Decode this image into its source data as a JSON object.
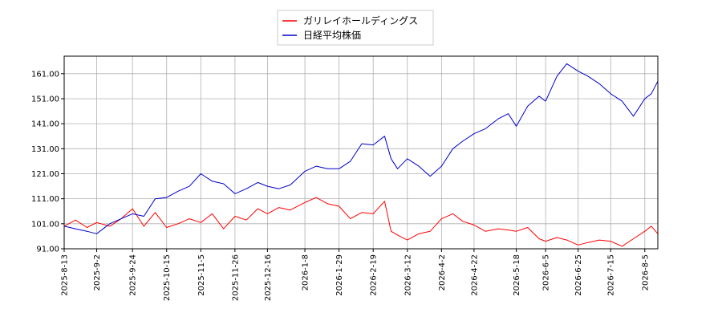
{
  "chart_data": {
    "type": "line",
    "title": "",
    "xlabel": "",
    "ylabel": "",
    "ylim": [
      91,
      168
    ],
    "yticks": [
      "91.00",
      "101.00",
      "111.00",
      "121.00",
      "131.00",
      "141.00",
      "151.00",
      "161.00"
    ],
    "xlim": [
      "2025-08-13",
      "2026-08-13"
    ],
    "xticks": [
      "2025-8-13",
      "2025-9-2",
      "2025-9-24",
      "2025-10-15",
      "2025-11-5",
      "2025-11-26",
      "2025-12-16",
      "2026-1-8",
      "2026-1-29",
      "2026-2-19",
      "2026-3-12",
      "2026-4-2",
      "2026-4-22",
      "2026-5-18",
      "2026-6-5",
      "2026-6-25",
      "2026-7-15",
      "2026-8-5"
    ],
    "grid": true,
    "legend_position": "top-center",
    "series": [
      {
        "name": "ガリレイホールディングス",
        "color": "#ff0000",
        "points": [
          [
            "2025-08-13",
            100.0
          ],
          [
            "2025-08-20",
            102.5
          ],
          [
            "2025-08-27",
            99.5
          ],
          [
            "2025-09-02",
            101.5
          ],
          [
            "2025-09-10",
            100.0
          ],
          [
            "2025-09-17",
            103.0
          ],
          [
            "2025-09-24",
            107.0
          ],
          [
            "2025-10-01",
            100.0
          ],
          [
            "2025-10-08",
            105.5
          ],
          [
            "2025-10-15",
            99.5
          ],
          [
            "2025-10-22",
            101.0
          ],
          [
            "2025-10-29",
            103.0
          ],
          [
            "2025-11-05",
            101.5
          ],
          [
            "2025-11-12",
            105.0
          ],
          [
            "2025-11-19",
            99.0
          ],
          [
            "2025-11-26",
            104.0
          ],
          [
            "2025-12-03",
            102.5
          ],
          [
            "2025-12-10",
            107.0
          ],
          [
            "2025-12-16",
            105.0
          ],
          [
            "2025-12-23",
            107.5
          ],
          [
            "2025-12-30",
            106.5
          ],
          [
            "2026-01-08",
            109.5
          ],
          [
            "2026-01-15",
            111.5
          ],
          [
            "2026-01-22",
            109.0
          ],
          [
            "2026-01-29",
            108.0
          ],
          [
            "2026-02-05",
            103.0
          ],
          [
            "2026-02-12",
            105.5
          ],
          [
            "2026-02-19",
            105.0
          ],
          [
            "2026-02-26",
            110.0
          ],
          [
            "2026-03-02",
            98.0
          ],
          [
            "2026-03-06",
            96.5
          ],
          [
            "2026-03-12",
            94.5
          ],
          [
            "2026-03-19",
            97.0
          ],
          [
            "2026-03-26",
            98.0
          ],
          [
            "2026-04-02",
            103.0
          ],
          [
            "2026-04-09",
            105.0
          ],
          [
            "2026-04-15",
            102.0
          ],
          [
            "2026-04-22",
            100.5
          ],
          [
            "2026-04-29",
            98.0
          ],
          [
            "2026-05-07",
            99.0
          ],
          [
            "2026-05-13",
            98.5
          ],
          [
            "2026-05-18",
            98.0
          ],
          [
            "2026-05-25",
            99.5
          ],
          [
            "2026-06-01",
            95.0
          ],
          [
            "2026-06-05",
            94.0
          ],
          [
            "2026-06-12",
            95.5
          ],
          [
            "2026-06-18",
            94.5
          ],
          [
            "2026-06-25",
            92.5
          ],
          [
            "2026-07-01",
            93.5
          ],
          [
            "2026-07-08",
            94.5
          ],
          [
            "2026-07-15",
            94.0
          ],
          [
            "2026-07-22",
            92.0
          ],
          [
            "2026-07-29",
            95.0
          ],
          [
            "2026-08-05",
            98.0
          ],
          [
            "2026-08-09",
            100.0
          ],
          [
            "2026-08-13",
            97.0
          ]
        ]
      },
      {
        "name": "日経平均株価",
        "color": "#0000cc",
        "points": [
          [
            "2025-08-13",
            100.0
          ],
          [
            "2025-08-20",
            99.0
          ],
          [
            "2025-08-27",
            98.0
          ],
          [
            "2025-09-02",
            97.0
          ],
          [
            "2025-09-10",
            101.0
          ],
          [
            "2025-09-17",
            103.0
          ],
          [
            "2025-09-24",
            105.0
          ],
          [
            "2025-10-01",
            104.0
          ],
          [
            "2025-10-08",
            111.0
          ],
          [
            "2025-10-15",
            111.5
          ],
          [
            "2025-10-22",
            114.0
          ],
          [
            "2025-10-29",
            116.0
          ],
          [
            "2025-11-05",
            121.0
          ],
          [
            "2025-11-12",
            118.0
          ],
          [
            "2025-11-19",
            117.0
          ],
          [
            "2025-11-26",
            113.0
          ],
          [
            "2025-12-03",
            115.0
          ],
          [
            "2025-12-10",
            117.5
          ],
          [
            "2025-12-16",
            116.0
          ],
          [
            "2025-12-23",
            115.0
          ],
          [
            "2025-12-30",
            116.5
          ],
          [
            "2026-01-08",
            122.0
          ],
          [
            "2026-01-15",
            124.0
          ],
          [
            "2026-01-22",
            123.0
          ],
          [
            "2026-01-29",
            123.0
          ],
          [
            "2026-02-05",
            126.0
          ],
          [
            "2026-02-12",
            133.0
          ],
          [
            "2026-02-19",
            132.5
          ],
          [
            "2026-02-26",
            136.0
          ],
          [
            "2026-03-02",
            127.0
          ],
          [
            "2026-03-06",
            123.0
          ],
          [
            "2026-03-12",
            127.0
          ],
          [
            "2026-03-19",
            124.0
          ],
          [
            "2026-03-26",
            120.0
          ],
          [
            "2026-04-02",
            124.0
          ],
          [
            "2026-04-09",
            131.0
          ],
          [
            "2026-04-15",
            134.0
          ],
          [
            "2026-04-22",
            137.0
          ],
          [
            "2026-04-29",
            139.0
          ],
          [
            "2026-05-07",
            143.0
          ],
          [
            "2026-05-13",
            145.0
          ],
          [
            "2026-05-18",
            140.0
          ],
          [
            "2026-05-25",
            148.0
          ],
          [
            "2026-06-01",
            152.0
          ],
          [
            "2026-06-05",
            150.0
          ],
          [
            "2026-06-12",
            160.0
          ],
          [
            "2026-06-18",
            165.0
          ],
          [
            "2026-06-25",
            162.0
          ],
          [
            "2026-07-01",
            160.0
          ],
          [
            "2026-07-08",
            157.0
          ],
          [
            "2026-07-15",
            153.0
          ],
          [
            "2026-07-22",
            150.0
          ],
          [
            "2026-07-29",
            144.0
          ],
          [
            "2026-08-05",
            151.0
          ],
          [
            "2026-08-09",
            153.0
          ],
          [
            "2026-08-13",
            158.0
          ]
        ]
      }
    ]
  },
  "legend": {
    "items": [
      {
        "label": "ガリレイホールディングス",
        "color": "#ff0000"
      },
      {
        "label": "日経平均株価",
        "color": "#0000cc"
      }
    ]
  }
}
